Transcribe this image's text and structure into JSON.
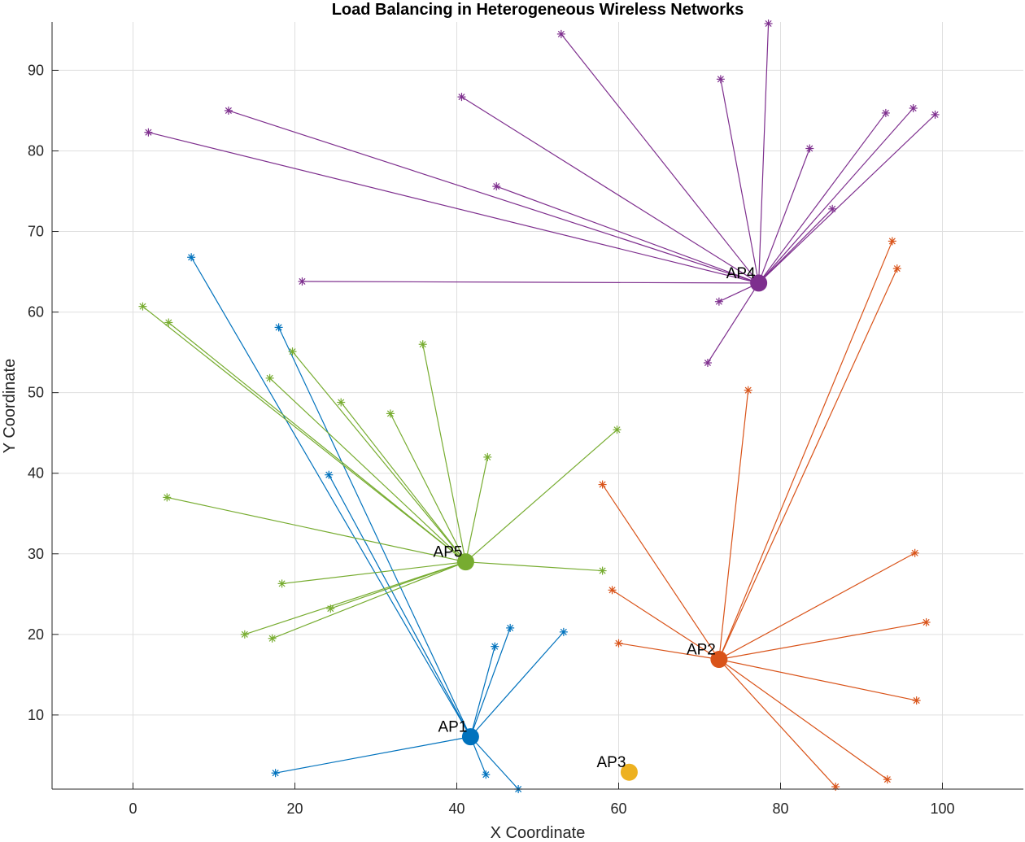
{
  "chart_data": {
    "type": "scatter",
    "title": "Load Balancing in Heterogeneous Wireless Networks",
    "xlabel": "X Coordinate",
    "ylabel": "Y Coordinate",
    "xlim": [
      -10,
      110
    ],
    "ylim": [
      0.8,
      96
    ],
    "xticks": [
      0,
      20,
      40,
      60,
      80,
      100
    ],
    "yticks": [
      10,
      20,
      30,
      40,
      50,
      60,
      70,
      80,
      90
    ],
    "grid": true,
    "series": [
      {
        "label": "AP1",
        "color": "#0072BD",
        "ap": [
          41.7,
          7.3
        ],
        "users": [
          [
            7.2,
            66.8
          ],
          [
            18.0,
            58.1
          ],
          [
            24.2,
            39.8
          ],
          [
            44.7,
            18.5
          ],
          [
            46.6,
            20.8
          ],
          [
            53.2,
            20.3
          ],
          [
            17.6,
            2.8
          ],
          [
            43.6,
            2.6
          ],
          [
            47.6,
            0.8
          ]
        ]
      },
      {
        "label": "AP2",
        "color": "#D95319",
        "ap": [
          72.4,
          16.9
        ],
        "users": [
          [
            93.8,
            68.8
          ],
          [
            94.4,
            65.4
          ],
          [
            76.0,
            50.3
          ],
          [
            58.0,
            38.6
          ],
          [
            59.2,
            25.5
          ],
          [
            60.0,
            18.9
          ],
          [
            96.6,
            30.1
          ],
          [
            98.0,
            21.5
          ],
          [
            96.8,
            11.8
          ],
          [
            86.8,
            1.1
          ],
          [
            93.2,
            2.0
          ]
        ]
      },
      {
        "label": "AP3",
        "color": "#EDB120",
        "ap": [
          61.3,
          2.9
        ],
        "users": []
      },
      {
        "label": "AP4",
        "color": "#7E2F8E",
        "ap": [
          77.3,
          63.6
        ],
        "users": [
          [
            52.9,
            94.5
          ],
          [
            78.5,
            95.8
          ],
          [
            72.6,
            88.9
          ],
          [
            40.6,
            86.7
          ],
          [
            11.8,
            85.0
          ],
          [
            1.9,
            82.3
          ],
          [
            44.9,
            75.6
          ],
          [
            83.6,
            80.3
          ],
          [
            93.0,
            84.7
          ],
          [
            96.4,
            85.3
          ],
          [
            99.1,
            84.5
          ],
          [
            86.4,
            72.8
          ],
          [
            20.9,
            63.8
          ],
          [
            72.4,
            61.3
          ],
          [
            71.0,
            53.7
          ]
        ]
      },
      {
        "label": "AP5",
        "color": "#77AC30",
        "ap": [
          41.1,
          29.0
        ],
        "users": [
          [
            1.2,
            60.7
          ],
          [
            4.4,
            58.7
          ],
          [
            19.7,
            55.1
          ],
          [
            16.9,
            51.8
          ],
          [
            35.8,
            56.0
          ],
          [
            25.7,
            48.8
          ],
          [
            31.8,
            47.4
          ],
          [
            43.8,
            42.0
          ],
          [
            59.8,
            45.4
          ],
          [
            4.2,
            37.0
          ],
          [
            18.4,
            26.3
          ],
          [
            24.4,
            23.2
          ],
          [
            13.8,
            20.0
          ],
          [
            17.2,
            19.5
          ],
          [
            58.0,
            27.9
          ]
        ]
      }
    ]
  }
}
